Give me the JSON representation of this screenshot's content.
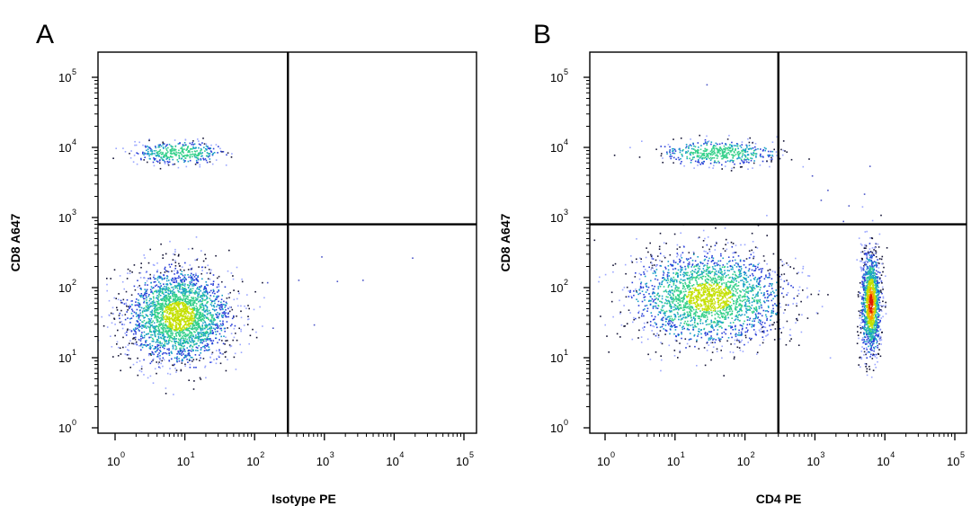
{
  "chart_data": [
    {
      "type": "scatter",
      "panel_label": "A",
      "xlabel": "Isotype PE",
      "ylabel": "CD8 A647",
      "x_scale": "log",
      "y_scale": "log",
      "xlim": [
        0.6,
        200000
      ],
      "ylim": [
        0.7,
        200000
      ],
      "x_ticks": [
        {
          "base": "10",
          "exp": "0"
        },
        {
          "base": "10",
          "exp": "1"
        },
        {
          "base": "10",
          "exp": "2"
        },
        {
          "base": "10",
          "exp": "3"
        },
        {
          "base": "10",
          "exp": "4"
        },
        {
          "base": "10",
          "exp": "5"
        }
      ],
      "y_ticks": [
        {
          "base": "10",
          "exp": "0"
        },
        {
          "base": "10",
          "exp": "1"
        },
        {
          "base": "10",
          "exp": "2"
        },
        {
          "base": "10",
          "exp": "3"
        },
        {
          "base": "10",
          "exp": "4"
        },
        {
          "base": "10",
          "exp": "5"
        }
      ],
      "quadrant_gate": {
        "x": 300,
        "y": 800
      },
      "populations": [
        {
          "name_hidden": "",
          "center_x": 8,
          "center_y": 40,
          "spread_log_x": 0.38,
          "spread_log_y": 0.34,
          "count": 2600
        },
        {
          "name_hidden": "",
          "center_x": 8,
          "center_y": 8500,
          "spread_log_x": 0.32,
          "spread_log_y": 0.08,
          "count": 380
        }
      ],
      "outliers": [
        [
          150,
          120
        ],
        [
          420,
          130
        ],
        [
          900,
          280
        ],
        [
          1500,
          125
        ],
        [
          180,
          27
        ],
        [
          700,
          30
        ],
        [
          3500,
          130
        ],
        [
          18000,
          270
        ]
      ],
      "grid": false,
      "density_colors": [
        "#9aa6ff",
        "#2a3fd8",
        "#1aa0c8",
        "#35d08a",
        "#c4e000",
        "#ff9a00",
        "#e01a00"
      ]
    },
    {
      "type": "scatter",
      "panel_label": "B",
      "xlabel": "CD4 PE",
      "ylabel": "CD8 A647",
      "x_scale": "log",
      "y_scale": "log",
      "xlim": [
        0.6,
        200000
      ],
      "ylim": [
        0.7,
        200000
      ],
      "x_ticks": [
        {
          "base": "10",
          "exp": "0"
        },
        {
          "base": "10",
          "exp": "1"
        },
        {
          "base": "10",
          "exp": "2"
        },
        {
          "base": "10",
          "exp": "3"
        },
        {
          "base": "10",
          "exp": "4"
        },
        {
          "base": "10",
          "exp": "5"
        }
      ],
      "y_ticks": [
        {
          "base": "10",
          "exp": "0"
        },
        {
          "base": "10",
          "exp": "1"
        },
        {
          "base": "10",
          "exp": "2"
        },
        {
          "base": "10",
          "exp": "3"
        },
        {
          "base": "10",
          "exp": "4"
        },
        {
          "base": "10",
          "exp": "5"
        }
      ],
      "quadrant_gate": {
        "x": 300,
        "y": 800
      },
      "populations": [
        {
          "name_hidden": "",
          "center_x": 30,
          "center_y": 75,
          "spread_log_x": 0.55,
          "spread_log_y": 0.33,
          "count": 2300
        },
        {
          "name_hidden": "",
          "center_x": 6200,
          "center_y": 60,
          "spread_log_x": 0.07,
          "spread_log_y": 0.38,
          "count": 1300
        },
        {
          "name_hidden": "",
          "center_x": 40,
          "center_y": 8500,
          "spread_log_x": 0.42,
          "spread_log_y": 0.09,
          "count": 480
        }
      ],
      "outliers": [
        [
          300,
          7000
        ],
        [
          900,
          4000
        ],
        [
          1500,
          2500
        ],
        [
          3000,
          1500
        ],
        [
          5000,
          2200
        ],
        [
          6000,
          5500
        ],
        [
          28,
          80000
        ],
        [
          1200,
          1800
        ],
        [
          2500,
          900
        ]
      ],
      "grid": false,
      "density_colors": [
        "#9aa6ff",
        "#2a3fd8",
        "#1aa0c8",
        "#35d08a",
        "#c4e000",
        "#ff9a00",
        "#e01a00"
      ]
    }
  ]
}
